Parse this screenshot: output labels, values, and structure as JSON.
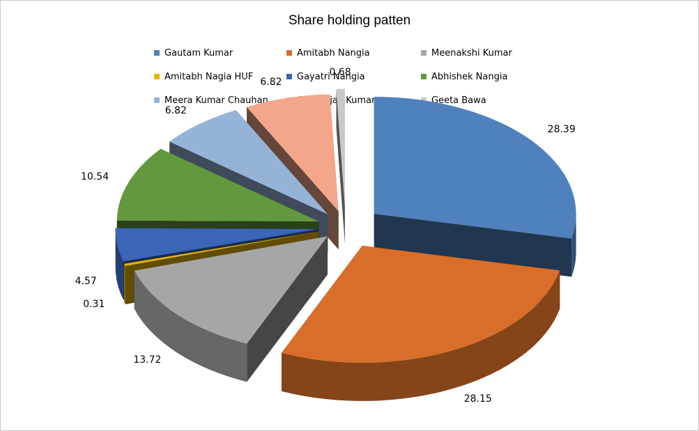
{
  "chart_data": {
    "type": "pie",
    "title": "Share holding patten",
    "categories": [
      "Gautam Kumar",
      "Amitabh Nangia",
      "Meenakshi Kumar",
      "Amitabh Nagia HUF",
      "Gayatri Nangia",
      "Abhishek Nangia",
      "Meera Kumar Chauhan",
      "Geetanjali Kumar",
      "Geeta Bawa"
    ],
    "values": [
      28.39,
      28.15,
      13.72,
      0.31,
      4.57,
      10.54,
      6.82,
      6.82,
      0.68
    ],
    "value_labels": [
      "28.39",
      "28.15",
      "13.72",
      "0.31",
      "4.57",
      "10.54",
      "6.82",
      "6.82",
      "0.68"
    ],
    "colors": [
      "#4f81bd",
      "#d86e29",
      "#a6a6a6",
      "#e6b400",
      "#3a66b8",
      "#62993e",
      "#95b3d7",
      "#f4a68b",
      "#c8c8c8"
    ],
    "style": "3d-exploded",
    "legend_position": "top"
  }
}
